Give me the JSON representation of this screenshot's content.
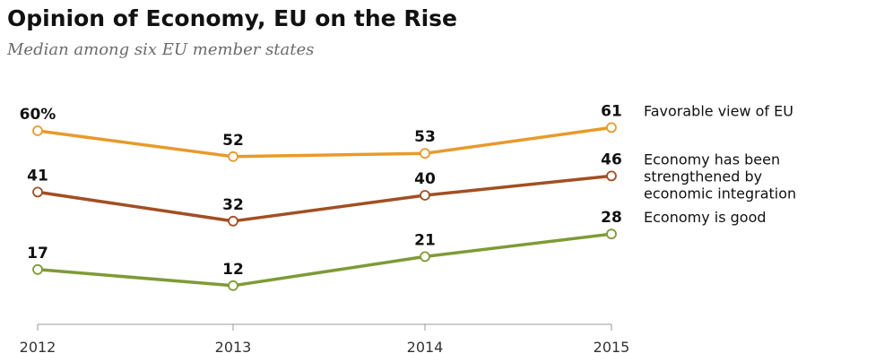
{
  "title": "Opinion of Economy, EU on the Rise",
  "subtitle": "Median among six EU member states",
  "chart_data": {
    "type": "line",
    "title": "Opinion of Economy, EU on the Rise",
    "subtitle": "Median among six EU member states",
    "x": [
      "2012",
      "2013",
      "2014",
      "2015"
    ],
    "ylim": [
      0,
      70
    ],
    "grid": false,
    "legend": "right (labels at line ends)",
    "series": [
      {
        "name": "Favorable view of EU",
        "label_lines": [
          "Favorable view of EU"
        ],
        "color": "#E89A2A",
        "values": [
          60,
          52,
          53,
          61
        ],
        "value_labels": [
          "60%",
          "52",
          "53",
          "61"
        ]
      },
      {
        "name": "Economy has been strengthened by economic integration",
        "label_lines": [
          "Economy has been",
          "strengthened by",
          "economic integration"
        ],
        "color": "#A14F22",
        "values": [
          41,
          32,
          40,
          46
        ],
        "value_labels": [
          "41",
          "32",
          "40",
          "46"
        ]
      },
      {
        "name": "Economy is good",
        "label_lines": [
          "Economy is good"
        ],
        "color": "#7E9B35",
        "values": [
          17,
          12,
          21,
          28
        ],
        "value_labels": [
          "17",
          "12",
          "21",
          "28"
        ]
      }
    ]
  }
}
